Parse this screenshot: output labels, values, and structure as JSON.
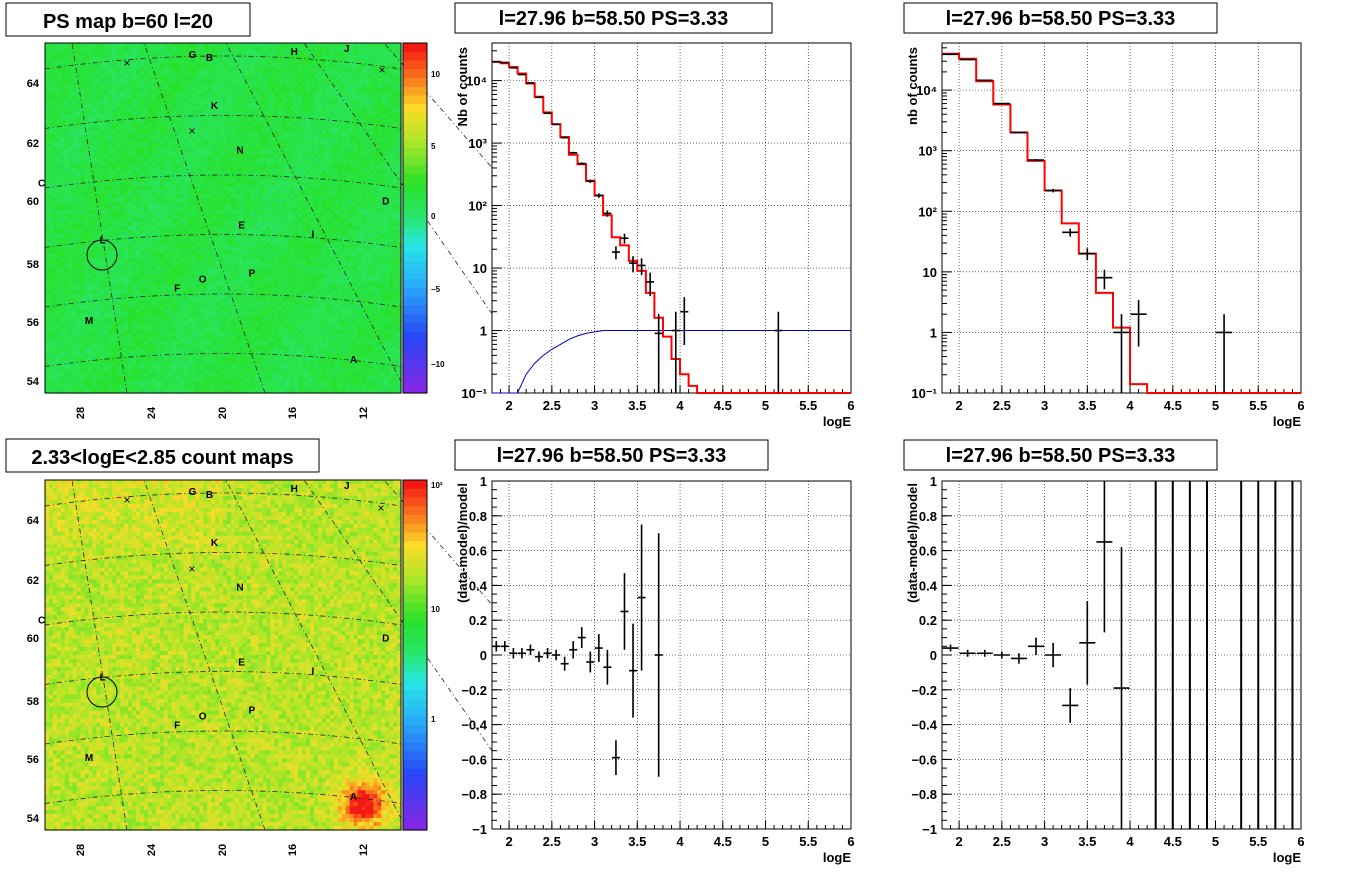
{
  "skymap_labels": {
    "letters": [
      "G",
      "B",
      "H",
      "J",
      "K",
      "N",
      "C",
      "D",
      "E",
      "I",
      "L",
      "O",
      "P",
      "F",
      "M",
      "A"
    ],
    "xticks": [
      "28",
      "24",
      "20",
      "16",
      "12"
    ],
    "yticks": [
      "54",
      "56",
      "58",
      "60",
      "62",
      "64"
    ]
  },
  "colors": {
    "model": "#ff0000",
    "data": "#000000",
    "curve": "#0000cc"
  },
  "chart_data": [
    {
      "type": "heatmap",
      "title": "PS map b=60 l=20",
      "xticks": [
        "28",
        "24",
        "20",
        "16",
        "12"
      ],
      "yticks": [
        "54",
        "56",
        "58",
        "60",
        "62",
        "64"
      ],
      "colorbar_ticks": [
        "10",
        "5",
        "0",
        "−5",
        "−10"
      ],
      "colorbar_range": [
        -12,
        12
      ],
      "markers": [
        {
          "label": "G",
          "l": 21.9,
          "b": 64.7
        },
        {
          "label": "B",
          "l": 20.9,
          "b": 64.6
        },
        {
          "label": "H",
          "l": 15.9,
          "b": 64.8
        },
        {
          "label": "J",
          "l": 12.8,
          "b": 64.9
        },
        {
          "label": "K",
          "l": 20.6,
          "b": 63.0
        },
        {
          "label": "N",
          "l": 19.1,
          "b": 61.5
        },
        {
          "label": "C",
          "l": 30.8,
          "b": 60.4
        },
        {
          "label": "D",
          "l": 10.5,
          "b": 59.8
        },
        {
          "label": "E",
          "l": 19.0,
          "b": 59.0
        },
        {
          "label": "I",
          "l": 14.8,
          "b": 58.7
        },
        {
          "label": "L",
          "l": 27.2,
          "b": 58.5
        },
        {
          "label": "O",
          "l": 21.3,
          "b": 57.2
        },
        {
          "label": "P",
          "l": 18.4,
          "b": 57.4
        },
        {
          "label": "F",
          "l": 22.8,
          "b": 56.9
        },
        {
          "label": "M",
          "l": 28.0,
          "b": 55.8
        },
        {
          "label": "A",
          "l": 12.4,
          "b": 54.5
        }
      ]
    },
    {
      "type": "line",
      "title": "l=27.96 b=58.50 PS=3.33",
      "xlabel": "logE",
      "ylabel": "Nb of counts",
      "xlim": [
        1.8,
        6
      ],
      "ylim": [
        0.1,
        40000
      ],
      "yscale": "log",
      "xticks": [
        "2",
        "2.5",
        "3",
        "3.5",
        "4",
        "4.5",
        "5",
        "5.5",
        "6"
      ],
      "yticks": [
        "10⁻¹",
        "1",
        "10",
        "10²",
        "10³",
        "10⁴"
      ],
      "grid": true,
      "series": [
        {
          "role": "model-step",
          "bin_edges": [
            1.8,
            1.9,
            2.0,
            2.1,
            2.2,
            2.3,
            2.4,
            2.5,
            2.6,
            2.7,
            2.8,
            2.9,
            3.0,
            3.1,
            3.2,
            3.3,
            3.4,
            3.5,
            3.6,
            3.7,
            3.8,
            3.9,
            4.0,
            4.1,
            4.2,
            6.0
          ],
          "values": [
            20000,
            19000,
            16500,
            13000,
            9000,
            5500,
            3100,
            2000,
            1250,
            650,
            460,
            250,
            145,
            70,
            31,
            23,
            13,
            9,
            4,
            1.6,
            0.8,
            0.35,
            0.2,
            0.13,
            0.1
          ]
        },
        {
          "role": "data",
          "x": [
            1.85,
            1.95,
            2.05,
            2.15,
            2.25,
            2.35,
            2.45,
            2.55,
            2.65,
            2.75,
            2.85,
            2.95,
            3.05,
            3.15,
            3.25,
            3.35,
            3.45,
            3.55,
            3.65,
            3.75,
            3.95,
            4.05,
            5.15
          ],
          "y": [
            20000,
            19500,
            16000,
            12500,
            9200,
            5400,
            3000,
            2000,
            1220,
            700,
            470,
            245,
            145,
            75,
            18,
            30,
            12,
            11,
            6,
            0.9,
            1,
            2,
            1
          ]
        },
        {
          "role": "curve",
          "x": [
            1.8,
            2.1,
            2.2,
            2.3,
            2.4,
            2.5,
            2.6,
            2.7,
            2.8,
            2.9,
            3.0,
            3.1,
            3.2,
            6.0
          ],
          "y": [
            0.1,
            0.1,
            0.2,
            0.3,
            0.4,
            0.5,
            0.6,
            0.72,
            0.82,
            0.9,
            0.95,
            1,
            1,
            1
          ]
        }
      ]
    },
    {
      "type": "line",
      "title": "l=27.96 b=58.50 PS=3.33",
      "xlabel": "logE",
      "ylabel": "nb of counts",
      "xlim": [
        1.8,
        6
      ],
      "ylim": [
        0.1,
        60000
      ],
      "yscale": "log",
      "xticks": [
        "2",
        "2.5",
        "3",
        "3.5",
        "4",
        "4.5",
        "5",
        "5.5",
        "6"
      ],
      "yticks": [
        "10⁻¹",
        "1",
        "10",
        "10²",
        "10³",
        "10⁴"
      ],
      "grid": true,
      "series": [
        {
          "role": "model-step",
          "bin_edges": [
            1.8,
            2.0,
            2.2,
            2.4,
            2.6,
            2.8,
            3.0,
            3.2,
            3.4,
            3.6,
            3.8,
            4.0,
            4.2,
            6.0
          ],
          "values": [
            40000,
            33000,
            14000,
            5800,
            2000,
            680,
            220,
            63,
            20,
            4.5,
            1.2,
            0.14,
            0.1
          ]
        },
        {
          "role": "data",
          "x": [
            1.9,
            2.1,
            2.3,
            2.5,
            2.7,
            2.9,
            3.1,
            3.3,
            3.5,
            3.7,
            3.9,
            4.1,
            5.1
          ],
          "y": [
            39000,
            32000,
            14500,
            6000,
            2000,
            700,
            220,
            45,
            20,
            8,
            1,
            2,
            1
          ]
        }
      ]
    },
    {
      "type": "heatmap",
      "title": "2.33<logE<2.85 count maps",
      "xticks": [
        "28",
        "24",
        "20",
        "16",
        "12"
      ],
      "yticks": [
        "54",
        "56",
        "58",
        "60",
        "62",
        "64"
      ],
      "colorbar_ticks": [
        "10²",
        "10",
        "1"
      ],
      "colorbar_scale": "log",
      "colorbar_range": [
        0.3,
        150
      ]
    },
    {
      "type": "scatter",
      "title": "l=27.96 b=58.50 PS=3.33",
      "xlabel": "logE",
      "ylabel": "(data-model)/model",
      "xlim": [
        1.8,
        6
      ],
      "ylim": [
        -1,
        1
      ],
      "xticks": [
        "2",
        "2.5",
        "3",
        "3.5",
        "4",
        "4.5",
        "5",
        "5.5",
        "6"
      ],
      "yticks": [
        "−1",
        "−0.8",
        "−0.6",
        "−0.4",
        "−0.2",
        "0",
        "0.2",
        "0.4",
        "0.6",
        "0.8",
        "1"
      ],
      "grid": true,
      "series": [
        {
          "role": "residuals",
          "x": [
            1.85,
            1.95,
            2.05,
            2.15,
            2.25,
            2.35,
            2.45,
            2.55,
            2.65,
            2.75,
            2.85,
            2.95,
            3.05,
            3.15,
            3.25,
            3.35,
            3.45,
            3.55,
            3.75
          ],
          "y": [
            0.05,
            0.05,
            0.01,
            0.01,
            0.03,
            -0.01,
            0.01,
            0.0,
            -0.05,
            0.03,
            0.1,
            -0.04,
            0.04,
            -0.07,
            -0.59,
            0.25,
            -0.09,
            0.33,
            0.0
          ],
          "err": [
            0.03,
            0.03,
            0.03,
            0.03,
            0.03,
            0.03,
            0.03,
            0.03,
            0.04,
            0.05,
            0.06,
            0.06,
            0.08,
            0.1,
            0.1,
            0.22,
            0.27,
            0.42,
            0.7
          ]
        }
      ]
    },
    {
      "type": "scatter",
      "title": "l=27.96 b=58.50 PS=3.33",
      "xlabel": "logE",
      "ylabel": "(data-model)/model",
      "xlim": [
        1.8,
        6
      ],
      "ylim": [
        -1,
        1
      ],
      "xticks": [
        "2",
        "2.5",
        "3",
        "3.5",
        "4",
        "4.5",
        "5",
        "5.5",
        "6"
      ],
      "yticks": [
        "−1",
        "−0.8",
        "−0.6",
        "−0.4",
        "−0.2",
        "0",
        "0.2",
        "0.4",
        "0.6",
        "0.8",
        "1"
      ],
      "grid": true,
      "series": [
        {
          "role": "residuals",
          "x": [
            1.9,
            2.1,
            2.3,
            2.5,
            2.7,
            2.9,
            3.1,
            3.3,
            3.5,
            3.7,
            3.9
          ],
          "y": [
            0.04,
            0.01,
            0.01,
            0.0,
            -0.02,
            0.05,
            0.0,
            -0.29,
            0.07,
            0.65,
            -0.19
          ],
          "err": [
            0.02,
            0.02,
            0.02,
            0.02,
            0.03,
            0.05,
            0.07,
            0.1,
            0.24,
            0.52,
            0.81
          ]
        },
        {
          "role": "full-span",
          "x": [
            4.3,
            4.5,
            4.7,
            4.9,
            5.3,
            5.5,
            5.7,
            5.9
          ]
        }
      ]
    }
  ]
}
